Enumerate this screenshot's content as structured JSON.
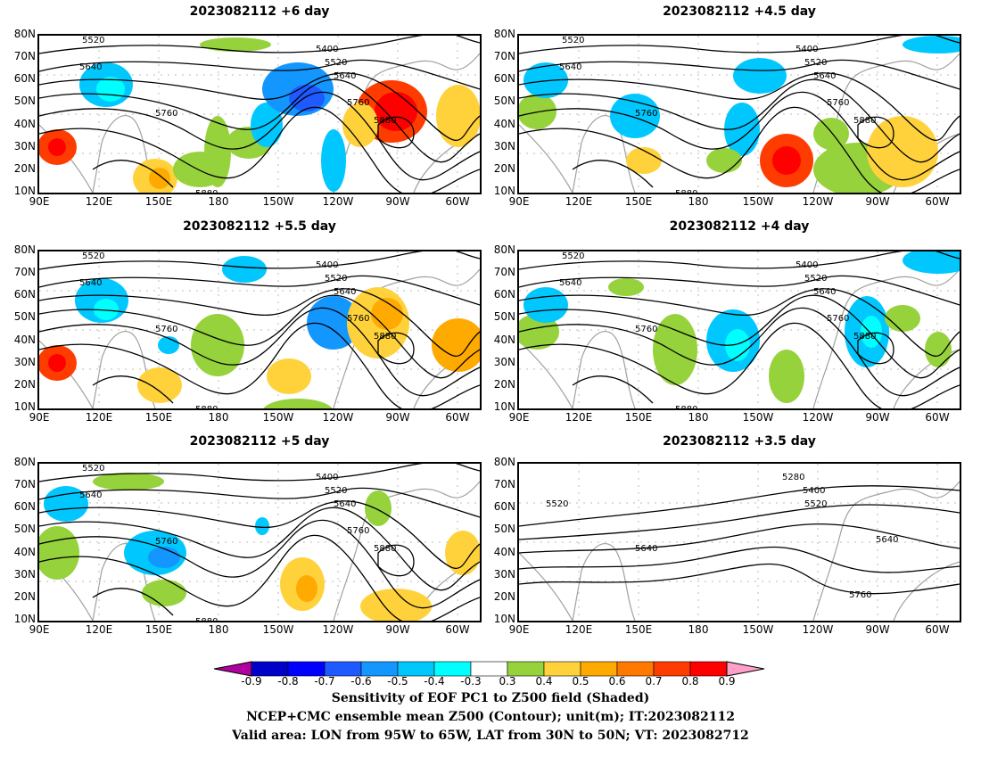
{
  "panels": [
    {
      "title": "2023082112  +6 day",
      "labels": [
        "5520",
        "5640",
        "5400",
        "5520",
        "5640",
        "5760",
        "5760",
        "5880",
        "5880"
      ]
    },
    {
      "title": "2023082112  +4.5 day",
      "labels": [
        "5520",
        "5640",
        "5400",
        "5520",
        "5640",
        "5760",
        "5760",
        "5880",
        "5880"
      ]
    },
    {
      "title": "2023082112  +5.5 day",
      "labels": [
        "5520",
        "5640",
        "5400",
        "5520",
        "5640",
        "5760",
        "5760",
        "5880",
        "5880"
      ]
    },
    {
      "title": "2023082112  +4 day",
      "labels": [
        "5520",
        "5640",
        "5400",
        "5520",
        "5640",
        "5760",
        "5760",
        "5880",
        "5880"
      ]
    },
    {
      "title": "2023082112  +5 day",
      "labels": [
        "5520",
        "5640",
        "5400",
        "5520",
        "5640",
        "5760",
        "5760",
        "5880",
        "5880"
      ]
    },
    {
      "title": "2023082112  +3.5 day",
      "labels": [
        "5280",
        "5400",
        "5520",
        "5520",
        "5640",
        "5640",
        "5760"
      ]
    }
  ],
  "lat_labels": [
    "80N",
    "70N",
    "60N",
    "50N",
    "40N",
    "30N",
    "20N",
    "10N"
  ],
  "lon_labels": [
    "90E",
    "120E",
    "150E",
    "180",
    "150W",
    "120W",
    "90W",
    "60W"
  ],
  "colorbar": {
    "ticks": [
      "-0.9",
      "-0.8",
      "-0.7",
      "-0.6",
      "-0.5",
      "-0.4",
      "-0.3",
      "0.3",
      "0.4",
      "0.5",
      "0.6",
      "0.7",
      "0.8",
      "0.9"
    ],
    "colors": [
      "#b000a0",
      "#0000c8",
      "#0000ff",
      "#1e5aff",
      "#1496ff",
      "#00c8ff",
      "#00ffff",
      "#ffffff",
      "#96d23c",
      "#ffd23c",
      "#ffaa00",
      "#ff7800",
      "#ff3c00",
      "#ff0000",
      "#ffa0c8"
    ]
  },
  "captions": [
    "Sensitivity of EOF PC1 to Z500 field (Shaded)",
    "NCEP+CMC ensemble mean Z500 (Contour); unit(m); IT:2023082112",
    "Valid area: LON from 95W to 65W, LAT from 30N to 50N; VT: 2023082712"
  ]
}
